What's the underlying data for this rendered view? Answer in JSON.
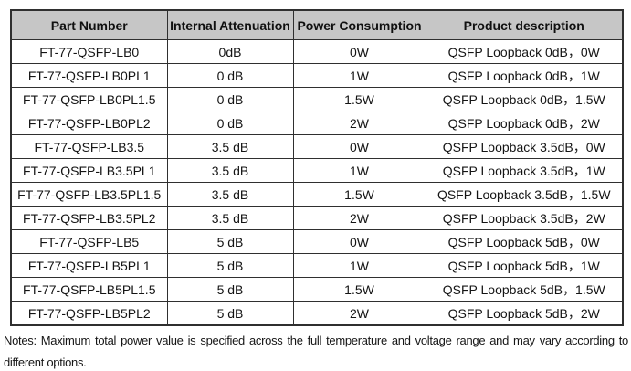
{
  "colors": {
    "page_bg": "#ffffff",
    "header_bg": "#c6c6c6",
    "border": "#2f2f2f",
    "text": "#141414"
  },
  "table": {
    "columns": [
      "Part Number",
      "Internal Attenuation",
      "Power Consumption",
      "Product description"
    ],
    "rows": [
      [
        "FT-77-QSFP-LB0",
        "0dB",
        "0W",
        "QSFP Loopback 0dB，0W"
      ],
      [
        "FT-77-QSFP-LB0PL1",
        "0 dB",
        "1W",
        "QSFP Loopback 0dB，1W"
      ],
      [
        "FT-77-QSFP-LB0PL1.5",
        "0 dB",
        "1.5W",
        "QSFP Loopback 0dB，1.5W"
      ],
      [
        "FT-77-QSFP-LB0PL2",
        "0 dB",
        "2W",
        "QSFP Loopback 0dB，2W"
      ],
      [
        "FT-77-QSFP-LB3.5",
        "3.5 dB",
        "0W",
        "QSFP Loopback 3.5dB，0W"
      ],
      [
        "FT-77-QSFP-LB3.5PL1",
        "3.5 dB",
        "1W",
        "QSFP Loopback 3.5dB，1W"
      ],
      [
        "FT-77-QSFP-LB3.5PL1.5",
        "3.5 dB",
        "1.5W",
        "QSFP Loopback 3.5dB，1.5W"
      ],
      [
        "FT-77-QSFP-LB3.5PL2",
        "3.5 dB",
        "2W",
        "QSFP Loopback 3.5dB，2W"
      ],
      [
        "FT-77-QSFP-LB5",
        "5 dB",
        "0W",
        "QSFP Loopback 5dB，0W"
      ],
      [
        "FT-77-QSFP-LB5PL1",
        "5 dB",
        "1W",
        "QSFP Loopback 5dB，1W"
      ],
      [
        "FT-77-QSFP-LB5PL1.5",
        "5 dB",
        "1.5W",
        "QSFP Loopback 5dB，1.5W"
      ],
      [
        "FT-77-QSFP-LB5PL2",
        "5 dB",
        "2W",
        "QSFP Loopback 5dB，2W"
      ]
    ]
  },
  "notes": {
    "text": "Notes: Maximum total power value is specified across the full temperature and voltage range and may vary according to different options."
  }
}
